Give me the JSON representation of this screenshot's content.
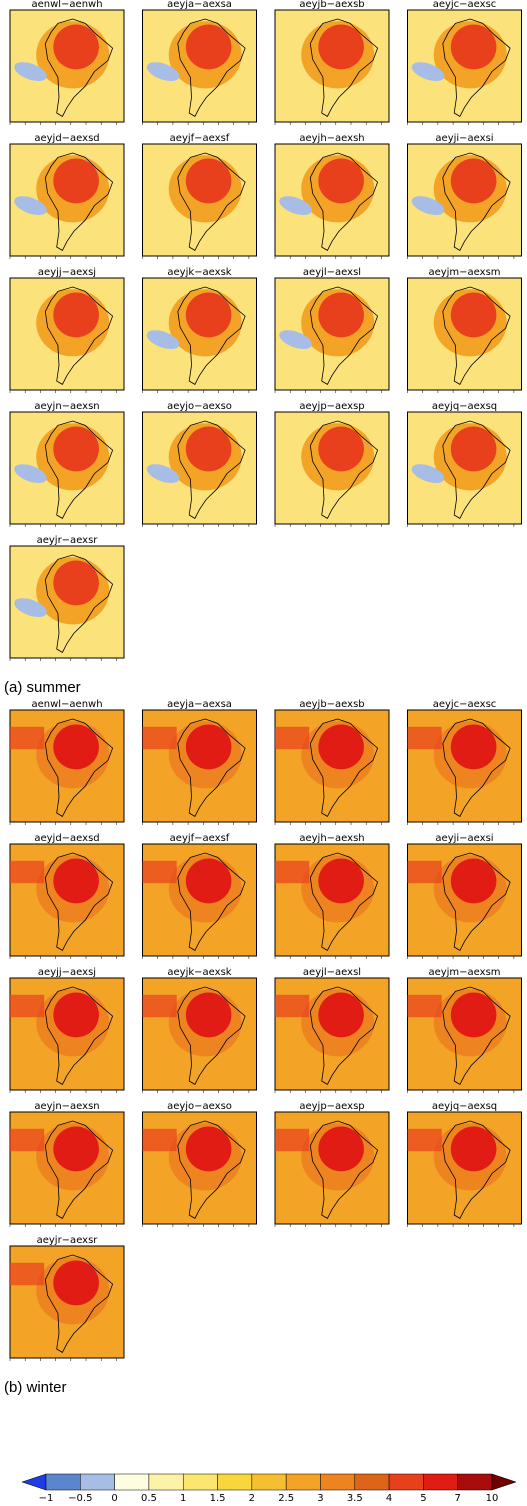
{
  "panels": {
    "summer": {
      "label": "(a) summer",
      "titles": [
        "aenwl−aenwh",
        "aeyja−aexsa",
        "aeyjb−aexsb",
        "aeyjc−aexsc",
        "aeyjd−aexsd",
        "aeyjf−aexsf",
        "aeyjh−aexsh",
        "aeyji−aexsi",
        "aeyjj−aexsj",
        "aeyjk−aexsk",
        "aeyjl−aexsl",
        "aeyjm−aexsm",
        "aeyjn−aexsn",
        "aeyjo−aexso",
        "aeyjp−aexsp",
        "aeyjq−aexsq",
        "aeyjr−aexsr"
      ]
    },
    "winter": {
      "label": "(b) winter",
      "titles": [
        "aenwl−aenwh",
        "aeyja−aexsa",
        "aeyjb−aexsb",
        "aeyjc−aexsc",
        "aeyjd−aexsd",
        "aeyjf−aexsf",
        "aeyjh−aexsh",
        "aeyji−aexsi",
        "aeyjj−aexsj",
        "aeyjk−aexsk",
        "aeyjl−aexsl",
        "aeyjm−aexsm",
        "aeyjn−aexsn",
        "aeyjo−aexso",
        "aeyjp−aexsp",
        "aeyjq−aexsq",
        "aeyjr−aexsr"
      ]
    }
  },
  "colorbar": {
    "ticks": [
      "−1",
      "−0.5",
      "0",
      "0.5",
      "1",
      "1.5",
      "2",
      "2.5",
      "3",
      "3.5",
      "4",
      "5",
      "7",
      "10"
    ],
    "colors": [
      "#1e3ce6",
      "#5a86cc",
      "#a7bde6",
      "#fffde0",
      "#fdf3a8",
      "#fbe770",
      "#f8d73c",
      "#f5bf30",
      "#f3a326",
      "#ed8420",
      "#dd6418",
      "#e8401c",
      "#e01c14",
      "#a80c0c",
      "#6e0000"
    ]
  }
}
